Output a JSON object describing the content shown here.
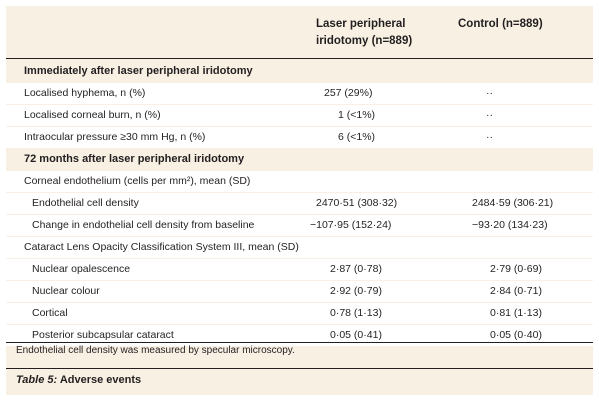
{
  "header": {
    "col2": "Laser peripheral iridotomy (n=889)",
    "col2_line1": "Laser peripheral",
    "col2_line2": "iridotomy (n=889)",
    "col3": "Control (n=889)"
  },
  "sections": [
    {
      "title": "Immediately after laser peripheral iridotomy",
      "rows": [
        {
          "label": "Localised hyphema, n (%)",
          "lpi": "257 (29%)",
          "control": "··"
        },
        {
          "label": "Localised corneal burn, n (%)",
          "lpi": "1 (<1%)",
          "control": "··"
        },
        {
          "label": "Intraocular pressure ≥30 mm Hg, n (%)",
          "lpi": "6 (<1%)",
          "control": "··"
        }
      ]
    },
    {
      "title": "72 months after laser peripheral iridotomy",
      "rows": [
        {
          "label": "Corneal endothelium (cells per mm²), mean (SD)",
          "lpi": "",
          "control": ""
        },
        {
          "label": "Endothelial cell density",
          "lpi": "2470·51 (308·32)",
          "control": "2484·59 (306·21)"
        },
        {
          "label": "Change in endothelial cell density from baseline",
          "lpi": "−107·95 (152·24)",
          "control": "−93·20 (134·23)"
        },
        {
          "label": "Cataract Lens Opacity Classification System III, mean (SD)",
          "lpi": "",
          "control": ""
        },
        {
          "label": "Nuclear opalescence",
          "lpi": "2·87 (0·78)",
          "control": "2·79 (0·69)"
        },
        {
          "label": "Nuclear colour",
          "lpi": "2·92 (0·79)",
          "control": "2·84 (0·71)"
        },
        {
          "label": "Cortical",
          "lpi": "0·78 (1·13)",
          "control": "0·81 (1·13)"
        },
        {
          "label": "Posterior subcapsular cataract",
          "lpi": "0·05 (0·41)",
          "control": "0·05 (0·40)"
        }
      ]
    }
  ],
  "footnote": "Endothelial cell density was measured by specular microscopy.",
  "caption": {
    "label": "Table 5:",
    "text": " Adverse events"
  }
}
